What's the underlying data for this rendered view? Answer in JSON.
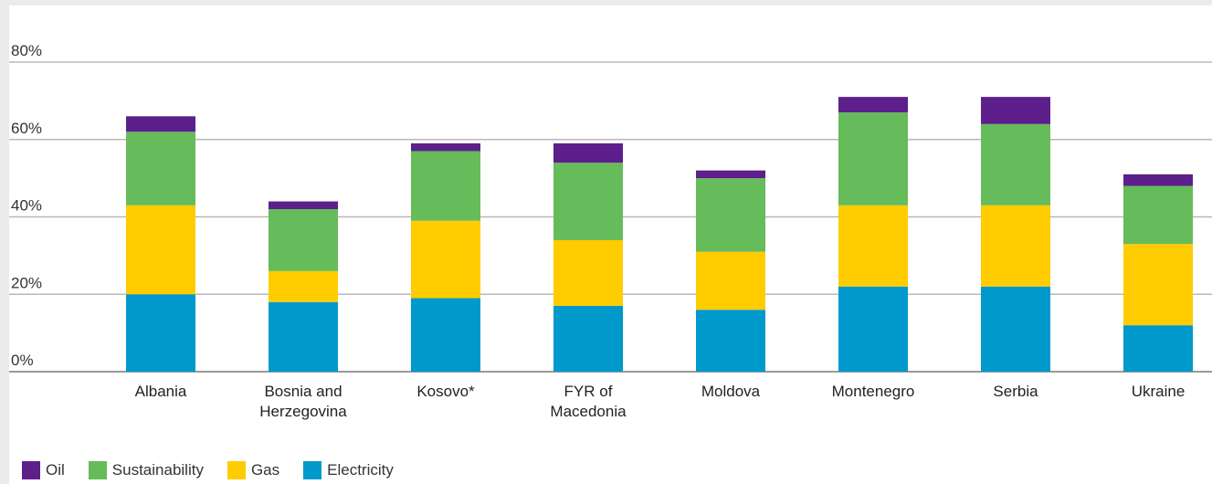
{
  "chart_data": {
    "type": "bar",
    "stacked": true,
    "categories": [
      "Albania",
      "Bosnia and Herzegovina",
      "Kosovo*",
      "FYR of Macedonia",
      "Moldova",
      "Montenegro",
      "Serbia",
      "Ukraine"
    ],
    "category_lines": [
      [
        "Albania"
      ],
      [
        "Bosnia and",
        "Herzegovina"
      ],
      [
        "Kosovo*"
      ],
      [
        "FYR of",
        "Macedonia"
      ],
      [
        "Moldova"
      ],
      [
        "Montenegro"
      ],
      [
        "Serbia"
      ],
      [
        "Ukraine"
      ]
    ],
    "series": [
      {
        "name": "Electricity",
        "color": "#0099cc",
        "values": [
          20,
          18,
          19,
          17,
          16,
          22,
          22,
          12
        ]
      },
      {
        "name": "Gas",
        "color": "#ffcc00",
        "values": [
          23,
          8,
          20,
          17,
          15,
          21,
          21,
          21
        ]
      },
      {
        "name": "Sustainability",
        "color": "#66bb5a",
        "values": [
          19,
          16,
          18,
          20,
          19,
          24,
          21,
          15
        ]
      },
      {
        "name": "Oil",
        "color": "#5c1f8c",
        "values": [
          4,
          2,
          2,
          5,
          2,
          4,
          7,
          3
        ]
      }
    ],
    "ylim": [
      0,
      80
    ],
    "yticks": [
      "0%",
      "20%",
      "40%",
      "60%",
      "80%"
    ],
    "grid": true,
    "legend": {
      "placement": "bottom-left",
      "order": [
        "Oil",
        "Sustainability",
        "Gas",
        "Electricity"
      ]
    }
  }
}
